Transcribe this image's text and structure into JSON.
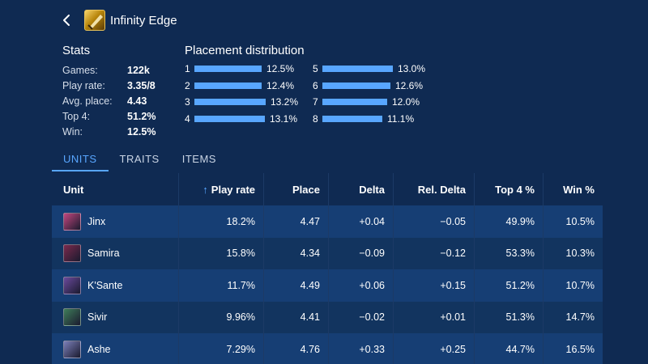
{
  "header": {
    "title": "Infinity Edge",
    "back_icon": "chevron-left-icon",
    "item_icon": "infinity-edge-icon"
  },
  "stats": {
    "title": "Stats",
    "rows": [
      {
        "label": "Games:",
        "value": "122k"
      },
      {
        "label": "Play rate:",
        "value": "3.35/8"
      },
      {
        "label": "Avg. place:",
        "value": "4.43"
      },
      {
        "label": "Top 4:",
        "value": "51.2%"
      },
      {
        "label": "Win:",
        "value": "12.5%"
      }
    ]
  },
  "placement": {
    "title": "Placement distribution",
    "rows": [
      {
        "place": "1",
        "pct": "12.5%",
        "value": 12.5
      },
      {
        "place": "2",
        "pct": "12.4%",
        "value": 12.4
      },
      {
        "place": "3",
        "pct": "13.2%",
        "value": 13.2
      },
      {
        "place": "4",
        "pct": "13.1%",
        "value": 13.1
      },
      {
        "place": "5",
        "pct": "13.0%",
        "value": 13.0
      },
      {
        "place": "6",
        "pct": "12.6%",
        "value": 12.6
      },
      {
        "place": "7",
        "pct": "12.0%",
        "value": 12.0
      },
      {
        "place": "8",
        "pct": "11.1%",
        "value": 11.1
      }
    ]
  },
  "tabs": [
    {
      "label": "UNITS",
      "active": true
    },
    {
      "label": "TRAITS",
      "active": false
    },
    {
      "label": "ITEMS",
      "active": false
    }
  ],
  "table": {
    "columns": [
      "Unit",
      "Play rate",
      "Place",
      "Delta",
      "Rel. Delta",
      "Top 4 %",
      "Win %"
    ],
    "rows": [
      {
        "unit": "Jinx",
        "play_rate": "18.2%",
        "place": "4.47",
        "delta": "+0.04",
        "rel_delta": "−0.05",
        "top4": "49.9%",
        "win": "10.5%",
        "color": "#c2477f"
      },
      {
        "unit": "Samira",
        "play_rate": "15.8%",
        "place": "4.34",
        "delta": "−0.09",
        "rel_delta": "−0.12",
        "top4": "53.3%",
        "win": "10.3%",
        "color": "#7a2a4d"
      },
      {
        "unit": "K'Sante",
        "play_rate": "11.7%",
        "place": "4.49",
        "delta": "+0.06",
        "rel_delta": "+0.15",
        "top4": "51.2%",
        "win": "10.7%",
        "color": "#6b4a9c"
      },
      {
        "unit": "Sivir",
        "play_rate": "9.96%",
        "place": "4.41",
        "delta": "−0.02",
        "rel_delta": "+0.01",
        "top4": "51.3%",
        "win": "14.7%",
        "color": "#3f7d5a"
      },
      {
        "unit": "Ashe",
        "play_rate": "7.29%",
        "place": "4.76",
        "delta": "+0.33",
        "rel_delta": "+0.25",
        "top4": "44.7%",
        "win": "16.5%",
        "color": "#7b7fb8"
      }
    ]
  },
  "colors": {
    "background": "#0f2a52",
    "accent": "#58a6ff",
    "row_odd": "#163e74",
    "row_even": "#12345f"
  }
}
